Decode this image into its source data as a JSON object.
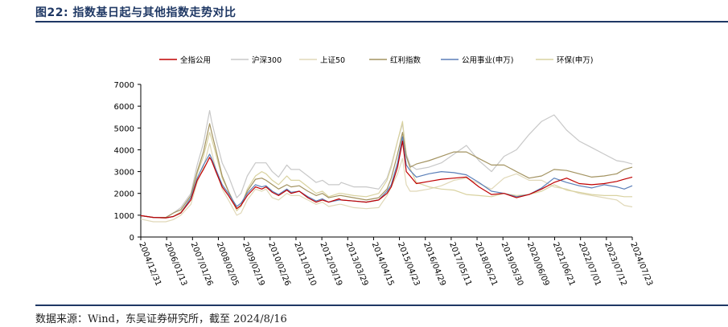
{
  "figure": {
    "title": "图22: 指数基日起与其他指数走势对比",
    "source": "数据来源：Wind，东吴证券研究所，截至 2024/8/16"
  },
  "chart_data": {
    "type": "line",
    "title": "",
    "xlabel": "",
    "ylabel": "",
    "ylim": [
      0,
      7000
    ],
    "yticks": [
      0,
      1000,
      2000,
      3000,
      4000,
      5000,
      6000,
      7000
    ],
    "grid": false,
    "legend_position": "top",
    "x_tick_labels": [
      "2004/12/31",
      "2006/01/13",
      "2007/01/26",
      "2008/02/05",
      "2009/02/19",
      "2010/02/26",
      "2011/03/10",
      "2012/03/19",
      "2013/03/29",
      "2014/04/15",
      "2015/04/23",
      "2016/04/29",
      "2017/05/11",
      "2018/05/21",
      "2019/05/30",
      "2020/06/09",
      "2021/06/21",
      "2022/07/01",
      "2023/07/12",
      "2024/07/23"
    ],
    "x": [
      2005.0,
      2005.5,
      2006.0,
      2006.3,
      2006.6,
      2007.0,
      2007.25,
      2007.5,
      2007.75,
      2007.83,
      2008.0,
      2008.25,
      2008.5,
      2008.83,
      2009.0,
      2009.25,
      2009.58,
      2009.83,
      2010.0,
      2010.25,
      2010.5,
      2010.83,
      2011.0,
      2011.33,
      2011.67,
      2012.0,
      2012.25,
      2012.5,
      2012.92,
      2013.0,
      2013.5,
      2014.0,
      2014.5,
      2014.83,
      2015.0,
      2015.25,
      2015.45,
      2015.6,
      2015.75,
      2016.0,
      2016.5,
      2017.0,
      2017.5,
      2018.0,
      2018.5,
      2019.0,
      2019.5,
      2020.0,
      2020.5,
      2021.0,
      2021.5,
      2022.0,
      2022.5,
      2023.0,
      2023.5,
      2024.0,
      2024.3,
      2024.62
    ],
    "series": [
      {
        "name": "全指公用",
        "color": "#c00000",
        "values": [
          980,
          900,
          880,
          940,
          1100,
          1700,
          2600,
          3100,
          3650,
          3500,
          3000,
          2300,
          1900,
          1300,
          1450,
          1900,
          2300,
          2200,
          2300,
          2050,
          1900,
          2150,
          2000,
          2100,
          1800,
          1600,
          1700,
          1600,
          1750,
          1700,
          1650,
          1600,
          1700,
          2000,
          2300,
          3200,
          4400,
          3000,
          2800,
          2450,
          2550,
          2650,
          2700,
          2750,
          2300,
          1950,
          2000,
          1800,
          1950,
          2200,
          2500,
          2700,
          2450,
          2400,
          2450,
          2550,
          2650,
          2750
        ]
      },
      {
        "name": "沪深300",
        "color": "#c8c8c8",
        "values": [
          980,
          900,
          880,
          1100,
          1350,
          2000,
          3300,
          4300,
          5800,
          5300,
          4500,
          3400,
          2800,
          1800,
          2000,
          2800,
          3400,
          3400,
          3400,
          3000,
          2750,
          3300,
          3100,
          3100,
          2800,
          2500,
          2600,
          2400,
          2400,
          2500,
          2300,
          2300,
          2200,
          2700,
          3300,
          4400,
          5200,
          3800,
          3300,
          3100,
          3200,
          3400,
          3800,
          4200,
          3500,
          3000,
          3700,
          4000,
          4700,
          5300,
          5600,
          4900,
          4400,
          4100,
          3800,
          3500,
          3450,
          3350
        ]
      },
      {
        "name": "上证50",
        "color": "#e0d8b8",
        "values": [
          820,
          700,
          700,
          800,
          1000,
          1500,
          2500,
          3200,
          4300,
          3900,
          3100,
          2200,
          1700,
          1000,
          1100,
          1700,
          2200,
          2100,
          2200,
          1800,
          1700,
          2000,
          1900,
          1900,
          1700,
          1500,
          1600,
          1400,
          1500,
          1500,
          1350,
          1300,
          1350,
          1900,
          2300,
          2900,
          3600,
          2400,
          2100,
          2100,
          2200,
          2350,
          2600,
          2700,
          2450,
          2200,
          2700,
          2900,
          2600,
          2600,
          2300,
          2200,
          2000,
          1900,
          1800,
          1700,
          1450,
          1380
        ]
      },
      {
        "name": "红利指数",
        "color": "#a39361",
        "values": [
          980,
          900,
          900,
          1100,
          1250,
          1900,
          3000,
          3900,
          5200,
          4800,
          4000,
          2800,
          2100,
          1300,
          1450,
          2100,
          2650,
          2700,
          2600,
          2400,
          2200,
          2400,
          2300,
          2350,
          2100,
          1900,
          2000,
          1800,
          1900,
          1900,
          1800,
          1700,
          1800,
          2200,
          2700,
          3800,
          4800,
          3700,
          3200,
          3350,
          3500,
          3700,
          3900,
          3900,
          3600,
          3300,
          3300,
          3000,
          2700,
          2800,
          3100,
          3050,
          2900,
          2750,
          2800,
          2900,
          3100,
          3200
        ]
      },
      {
        "name": "公用事业(申万)",
        "color": "#5b7fb8",
        "values": [
          980,
          900,
          880,
          940,
          1100,
          1800,
          2700,
          3300,
          3800,
          3600,
          3100,
          2400,
          2000,
          1400,
          1550,
          2000,
          2400,
          2300,
          2350,
          2100,
          1950,
          2200,
          2050,
          2100,
          1850,
          1650,
          1750,
          1600,
          1700,
          1700,
          1650,
          1600,
          1700,
          2100,
          2400,
          3400,
          4600,
          3300,
          3050,
          2750,
          2900,
          3000,
          2950,
          2850,
          2500,
          2100,
          2000,
          1850,
          1950,
          2250,
          2700,
          2500,
          2350,
          2250,
          2400,
          2300,
          2200,
          2350
        ]
      },
      {
        "name": "环保(申万)",
        "color": "#d9d2a0",
        "values": [
          980,
          900,
          870,
          950,
          1150,
          1800,
          2900,
          3700,
          4800,
          4500,
          3800,
          2700,
          2100,
          1200,
          1400,
          2200,
          2800,
          3000,
          2900,
          2600,
          2400,
          2800,
          2600,
          2600,
          2300,
          2000,
          2100,
          1850,
          2000,
          2000,
          1900,
          1850,
          2000,
          2600,
          3200,
          4400,
          5300,
          3700,
          3150,
          2500,
          2300,
          2200,
          2150,
          1950,
          1900,
          1850,
          2000,
          1900,
          1950,
          2100,
          2400,
          2150,
          2050,
          1950,
          1900,
          1900,
          1850,
          1850
        ]
      }
    ]
  }
}
